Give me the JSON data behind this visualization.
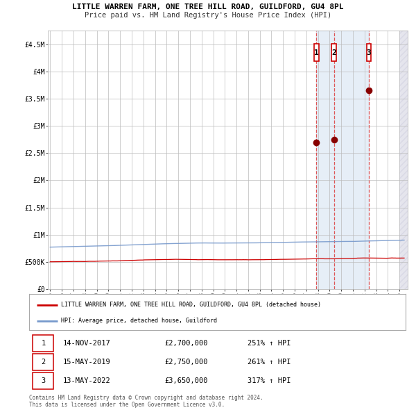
{
  "title": "LITTLE WARREN FARM, ONE TREE HILL ROAD, GUILDFORD, GU4 8PL",
  "subtitle": "Price paid vs. HM Land Registry's House Price Index (HPI)",
  "legend_property": "LITTLE WARREN FARM, ONE TREE HILL ROAD, GUILDFORD, GU4 8PL (detached house)",
  "legend_hpi": "HPI: Average price, detached house, Guildford",
  "property_color": "#cc0000",
  "hpi_color": "#7799cc",
  "sale_dot_color": "#880000",
  "vline_color": "#dd4444",
  "bg_color": "#ffffff",
  "grid_color": "#bbbbbb",
  "shaded_color": "#dce8f5",
  "hatch_color": "#ccccdd",
  "ylim": [
    0,
    4750000
  ],
  "xlim_start": 1994.8,
  "xlim_end": 2025.7,
  "yticks": [
    0,
    500000,
    1000000,
    1500000,
    2000000,
    2500000,
    3000000,
    3500000,
    4000000,
    4500000
  ],
  "ytick_labels": [
    "£0",
    "£500K",
    "£1M",
    "£1.5M",
    "£2M",
    "£2.5M",
    "£3M",
    "£3.5M",
    "£4M",
    "£4.5M"
  ],
  "xtick_years": [
    1995,
    1996,
    1997,
    1998,
    1999,
    2000,
    2001,
    2002,
    2003,
    2004,
    2005,
    2006,
    2007,
    2008,
    2009,
    2010,
    2011,
    2012,
    2013,
    2014,
    2015,
    2016,
    2017,
    2018,
    2019,
    2020,
    2021,
    2022,
    2023,
    2024,
    2025
  ],
  "sales": [
    {
      "year": 2017.87,
      "price": 2700000,
      "label": "1"
    },
    {
      "year": 2019.37,
      "price": 2750000,
      "label": "2"
    },
    {
      "year": 2022.37,
      "price": 3650000,
      "label": "3"
    }
  ],
  "sale_table": [
    {
      "num": "1",
      "date": "14-NOV-2017",
      "price": "£2,700,000",
      "pct": "251% ↑ HPI"
    },
    {
      "num": "2",
      "date": "15-MAY-2019",
      "price": "£2,750,000",
      "pct": "261% ↑ HPI"
    },
    {
      "num": "3",
      "date": "13-MAY-2022",
      "price": "£3,650,000",
      "pct": "317% ↑ HPI"
    }
  ],
  "footer": "Contains HM Land Registry data © Crown copyright and database right 2024.\nThis data is licensed under the Open Government Licence v3.0.",
  "shaded_start": 2017.87,
  "shaded_end": 2022.37,
  "hatch_start": 2025.0
}
